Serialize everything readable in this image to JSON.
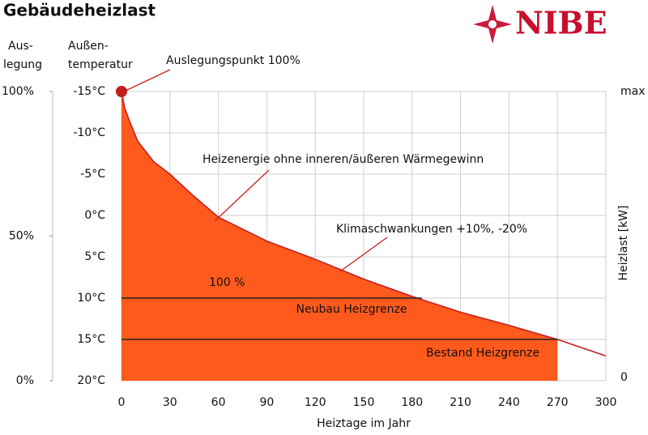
{
  "chart_data": {
    "type": "area",
    "title": "Gebäudeheizlast",
    "logo": "NIBE",
    "xlabel": "Heiztage im Jahr",
    "design_axis_label": [
      "Aus-",
      "legung"
    ],
    "temp_axis_label": [
      "Außen-",
      "temperatur"
    ],
    "load_axis_label": "Heizlast  [kW]",
    "xlim": [
      0,
      300
    ],
    "xticks": [
      0,
      30,
      60,
      90,
      120,
      150,
      180,
      210,
      240,
      270,
      300
    ],
    "ylim": [
      -15,
      20
    ],
    "yticks": [
      {
        "value": -15,
        "label": "-15°C"
      },
      {
        "value": -10,
        "label": "-10°C"
      },
      {
        "value": -5,
        "label": "-5°C"
      },
      {
        "value": 0,
        "label": "0°C"
      },
      {
        "value": 5,
        "label": "5°C"
      },
      {
        "value": 10,
        "label": "10°C"
      },
      {
        "value": 15,
        "label": "15°C"
      },
      {
        "value": 20,
        "label": "20°C"
      }
    ],
    "y2lim": [
      0,
      100
    ],
    "y2ticks": [
      {
        "value": 0,
        "label": "0%"
      },
      {
        "value": 50,
        "label": "50%"
      },
      {
        "value": 100,
        "label": "100%"
      }
    ],
    "y3lim": [
      0,
      1
    ],
    "y3ticks": [
      {
        "value": 1,
        "label": "max"
      },
      0
    ],
    "grid": true,
    "series": [
      {
        "name": "Heizlast",
        "color": "#c41e1e",
        "fill": "#ff5a1e",
        "x": [
          0,
          2,
          5,
          10,
          20,
          30,
          45,
          60,
          90,
          120,
          150,
          180,
          210,
          240,
          270,
          300
        ],
        "values": [
          -15,
          -13,
          -11.4,
          -9,
          -6.5,
          -5,
          -2.3,
          0.2,
          3.1,
          5.3,
          7.7,
          9.8,
          11.7,
          13.3,
          15,
          17
        ]
      }
    ],
    "limits": [
      {
        "label": "Neubau Heizgrenze",
        "value": 10,
        "x": [
          0,
          186
        ]
      },
      {
        "label": "Bestand Heizgrenze",
        "value": 15,
        "x": [
          0,
          270
        ]
      }
    ],
    "annotations": [
      "Auslegungspunkt 100%",
      "Heizenergie ohne inneren/äußeren Wärmegewinn",
      "Klimaschwankungen +10%, -20%",
      "100  %"
    ]
  }
}
